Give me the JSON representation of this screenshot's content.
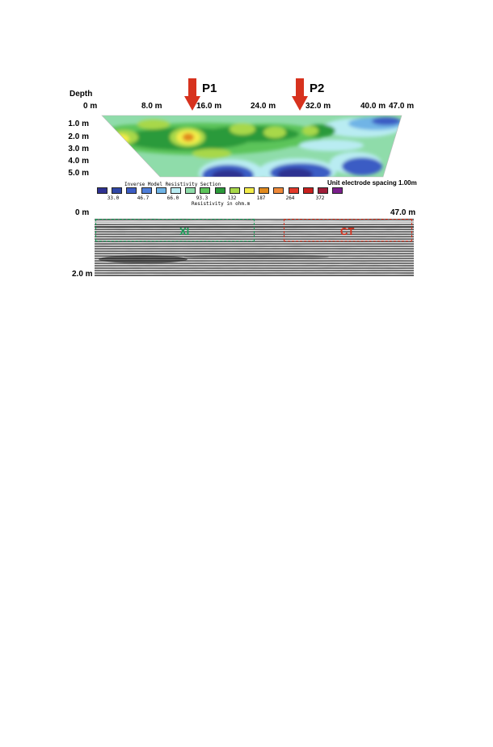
{
  "resistivity": {
    "depth_heading": "Depth",
    "x_ticks": [
      "0 m",
      "8.0 m",
      "16.0 m",
      "24.0 m",
      "32.0 m",
      "40.0 m",
      "47.0 m"
    ],
    "depth_ticks": [
      "1.0 m",
      "2.0 m",
      "3.0 m",
      "4.0 m",
      "5.0 m"
    ],
    "markers": [
      {
        "label": "P1",
        "color": "#d7321e"
      },
      {
        "label": "P2",
        "color": "#d7321e"
      }
    ],
    "section_title": "Inverse Model Resistivity Section",
    "spacing_note": "Unit electrode spacing 1.00m",
    "legend_values": [
      "33.0",
      "46.7",
      "66.0",
      "93.3",
      "132",
      "187",
      "264",
      "372"
    ],
    "legend_unit": "Resistivity in ohm.m",
    "legend_colors": [
      "#2e3191",
      "#3047a6",
      "#3b5cc4",
      "#4f7ed9",
      "#6fb4e6",
      "#b9ecf2",
      "#8fdcaa",
      "#5cc45a",
      "#2a9a3a",
      "#a8d84a",
      "#f2ec4a",
      "#e08a1e",
      "#ef8a3a",
      "#e23a2a",
      "#c8201e",
      "#a01e3a",
      "#7b1f8c"
    ]
  },
  "gpr": {
    "top_left_label": "0 m",
    "top_right_label": "47.0 m",
    "bottom_left_label": "2.0 m",
    "zone_left": {
      "label": "XI",
      "color": "#1aa05a"
    },
    "zone_right": {
      "label": "CT",
      "color": "#d7321e"
    }
  }
}
